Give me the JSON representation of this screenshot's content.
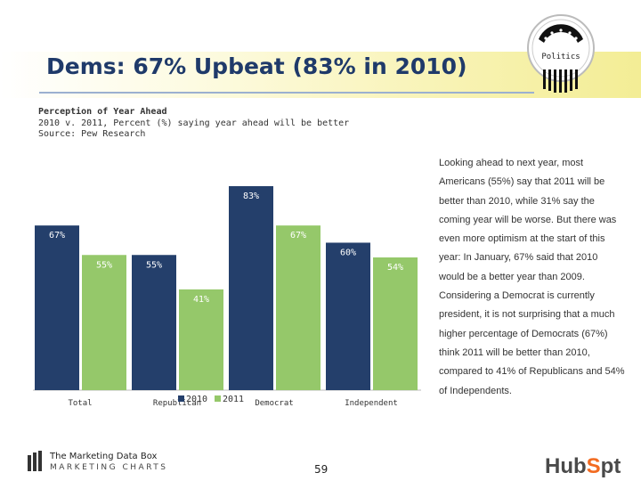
{
  "slide": {
    "title": "Dems: 67% Upbeat (83% in 2010)",
    "chart_title": "Perception of Year Ahead",
    "chart_subtitle": "2010 v. 2011, Percent (%) saying year ahead will be better",
    "source": "Source: Pew Research",
    "side_text": "Looking ahead to next year, most Americans (55%) say that 2011 will be better than 2010, while 31% say the coming year will be worse. But there was even more optimism at the start of this year: In January, 67% said that 2010 would be a better year than 2009. Considering a Democrat is currently president, it is not surprising that a much higher percentage of Democrats (67%) think 2011 will be better than 2010, compared to 41% of Republicans and 54% of Independents.",
    "page_number": "59",
    "footer_brand_line1": "The Marketing Data Box",
    "footer_brand_line2": "MARKETING CHARTS",
    "hubspot_left": "Hub",
    "hubspot_o": "S",
    "hubspot_right": "pt",
    "seal_label": "Politics"
  },
  "colors": {
    "series_2010": "#243f6b",
    "series_2011": "#95c86a",
    "title_color": "#1f3a6a",
    "hubspot_orange": "#f26b21"
  },
  "chart_data": {
    "type": "bar",
    "title": "Perception of Year Ahead",
    "subtitle": "2010 v. 2011, Percent (%) saying year ahead will be better",
    "categories": [
      "Total",
      "Republican",
      "Democrat",
      "Independent"
    ],
    "series": [
      {
        "name": "2010",
        "values": [
          67,
          55,
          83,
          60
        ]
      },
      {
        "name": "2011",
        "values": [
          55,
          41,
          67,
          54
        ]
      }
    ],
    "data_labels": [
      [
        "67%",
        "55%",
        "83%",
        "60%"
      ],
      [
        "55%",
        "41%",
        "67%",
        "54%"
      ]
    ],
    "ylim": [
      0,
      100
    ],
    "legend_position": "bottom-center",
    "grid": false,
    "xlabel": "",
    "ylabel": ""
  }
}
